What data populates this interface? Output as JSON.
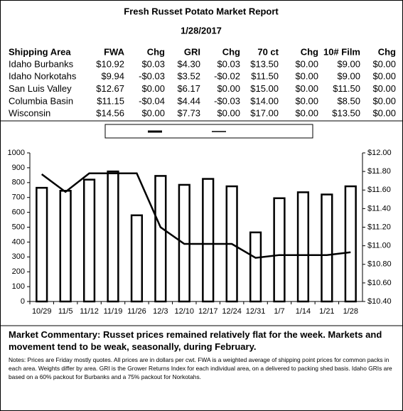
{
  "header": {
    "title": "Fresh Russet Potato Market Report",
    "date": "1/28/2017"
  },
  "table": {
    "columns": [
      "Shipping Area",
      "FWA",
      "Chg",
      "GRI",
      "Chg",
      "70 ct",
      "Chg",
      "10# Film",
      "Chg"
    ],
    "rows": [
      [
        "Idaho Burbanks",
        "$10.92",
        "$0.03",
        "$4.30",
        "$0.03",
        "$13.50",
        "$0.00",
        "$9.00",
        "$0.00"
      ],
      [
        "Idaho Norkotahs",
        "$9.94",
        "-$0.03",
        "$3.52",
        "-$0.02",
        "$11.50",
        "$0.00",
        "$9.00",
        "$0.00"
      ],
      [
        "San Luis Valley",
        "$12.67",
        "$0.00",
        "$6.17",
        "$0.00",
        "$15.00",
        "$0.00",
        "$11.50",
        "$0.00"
      ],
      [
        "Columbia Basin",
        "$11.15",
        "-$0.04",
        "$4.44",
        "-$0.03",
        "$14.00",
        "$0.00",
        "$8.50",
        "$0.00"
      ],
      [
        "Wisconsin",
        "$14.56",
        "$0.00",
        "$7.73",
        "$0.00",
        "$17.00",
        "$0.00",
        "$13.50",
        "$0.00"
      ]
    ]
  },
  "chart_data": {
    "type": "bar-line",
    "categories": [
      "10/29",
      "11/5",
      "11/12",
      "11/19",
      "11/26",
      "12/3",
      "12/10",
      "12/17",
      "12/24",
      "12/31",
      "1/7",
      "1/14",
      "1/21",
      "1/28"
    ],
    "series": [
      {
        "type": "bar",
        "color": "#000000",
        "values": [
          765,
          745,
          820,
          875,
          580,
          845,
          785,
          825,
          775,
          465,
          695,
          735,
          720,
          775
        ]
      },
      {
        "type": "line",
        "axis": "y2",
        "color": "#000000",
        "values": [
          11.77,
          11.58,
          11.78,
          11.78,
          11.78,
          11.2,
          11.02,
          11.02,
          11.02,
          10.87,
          10.9,
          10.9,
          10.9,
          10.93
        ]
      }
    ],
    "ylim": [
      0,
      1000
    ],
    "yticks": [
      0,
      100,
      200,
      300,
      400,
      500,
      600,
      700,
      800,
      900,
      1000
    ],
    "y2lim": [
      10.4,
      12.0
    ],
    "y2ticks": [
      {
        "value": 10.4,
        "label": "$10.40"
      },
      {
        "value": 10.6,
        "label": "$10.60"
      },
      {
        "value": 10.8,
        "label": "$10.80"
      },
      {
        "value": 11.0,
        "label": "$11.00"
      },
      {
        "value": 11.2,
        "label": "$11.20"
      },
      {
        "value": 11.4,
        "label": "$11.40"
      },
      {
        "value": 11.6,
        "label": "$11.60"
      },
      {
        "value": 11.8,
        "label": "$11.80"
      },
      {
        "value": 12.0,
        "label": "$12.00"
      }
    ]
  },
  "commentary": {
    "title": "Market Commentary:",
    "text": "Russet prices remained relatively flat for the week. Markets and movement tend to be weak, seasonally, during February.",
    "notes": "Notes: Prices are Friday mostly quotes. All prices are in dollars per cwt. FWA is a weighted average of shipping point prices for common packs in each area. Weights differ by area. GRI is the Grower Returns Index for each individual area, on a delivered to packing shed basis. Idaho GRIs are based on a 60% packout for Burbanks and a 75% packout for Norkotahs."
  }
}
